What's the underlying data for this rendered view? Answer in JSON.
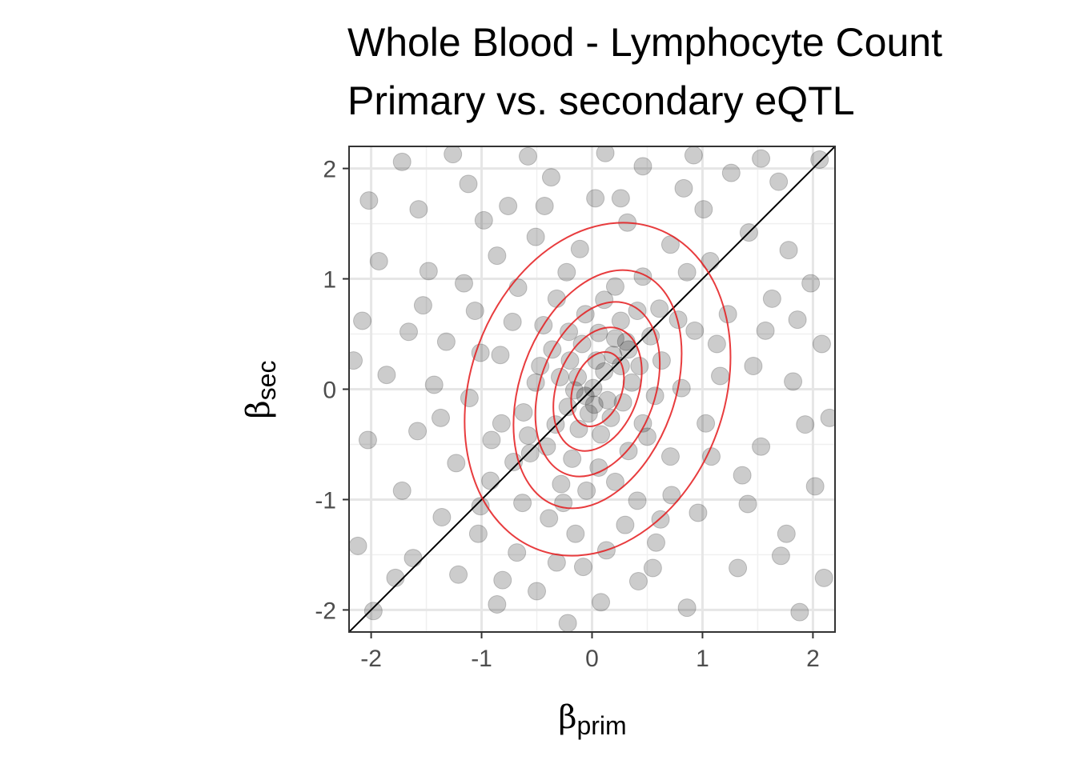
{
  "chart_data": {
    "type": "scatter",
    "title": "Whole Blood - Lymphocyte Count",
    "subtitle": "Primary vs. secondary eQTL",
    "xlabel": {
      "main": "β",
      "sub": "prim"
    },
    "ylabel": {
      "main": "β",
      "sub": "sec"
    },
    "xlim": [
      -2.2,
      2.2
    ],
    "ylim": [
      -2.2,
      2.2
    ],
    "x_ticks": [
      -2,
      -1,
      0,
      1,
      2
    ],
    "y_ticks": [
      -2,
      -1,
      0,
      1,
      2
    ],
    "x_tick_labels": [
      "-2",
      "-1",
      "0",
      "1",
      "2"
    ],
    "y_tick_labels": [
      "-2",
      "-1",
      "0",
      "1",
      "2"
    ],
    "grid": true,
    "reference_line": {
      "slope": 1,
      "intercept": 0,
      "color": "#000000"
    },
    "point_style": {
      "color": "#000000",
      "opacity": 0.2
    },
    "density_contours": {
      "color": "#e41a1c",
      "center": [
        0.05,
        0.0
      ],
      "rotation_deg": 20,
      "levels": [
        {
          "rx": 1.15,
          "ry": 1.55
        },
        {
          "rx": 0.7,
          "ry": 1.12
        },
        {
          "rx": 0.52,
          "ry": 0.82
        },
        {
          "rx": 0.37,
          "ry": 0.58
        },
        {
          "rx": 0.22,
          "ry": 0.35
        }
      ]
    },
    "points": [
      {
        "x": -1.98,
        "y": -2.01
      },
      {
        "x": -1.62,
        "y": -1.53
      },
      {
        "x": -1.21,
        "y": -1.68
      },
      {
        "x": -0.86,
        "y": -1.95
      },
      {
        "x": -0.5,
        "y": -1.83
      },
      {
        "x": -0.22,
        "y": -2.12
      },
      {
        "x": 0.08,
        "y": -1.93
      },
      {
        "x": 0.42,
        "y": -1.74
      },
      {
        "x": 0.86,
        "y": -1.98
      },
      {
        "x": 1.32,
        "y": -1.62
      },
      {
        "x": 1.88,
        "y": -2.02
      },
      {
        "x": 2.1,
        "y": -1.71
      },
      {
        "x": -2.12,
        "y": -1.42
      },
      {
        "x": -1.72,
        "y": -0.92
      },
      {
        "x": -1.36,
        "y": -1.16
      },
      {
        "x": -1.03,
        "y": -1.31
      },
      {
        "x": -0.68,
        "y": -1.48
      },
      {
        "x": -0.32,
        "y": -1.57
      },
      {
        "x": 0.13,
        "y": -1.46
      },
      {
        "x": 0.58,
        "y": -1.39
      },
      {
        "x": 0.96,
        "y": -1.12
      },
      {
        "x": 1.41,
        "y": -1.04
      },
      {
        "x": 1.76,
        "y": -1.31
      },
      {
        "x": 2.02,
        "y": -0.88
      },
      {
        "x": -2.03,
        "y": -0.46
      },
      {
        "x": -1.58,
        "y": -0.38
      },
      {
        "x": -1.23,
        "y": -0.67
      },
      {
        "x": -0.92,
        "y": -0.83
      },
      {
        "x": -0.63,
        "y": -1.03
      },
      {
        "x": -0.39,
        "y": -1.17
      },
      {
        "x": 0.3,
        "y": -1.23
      },
      {
        "x": 0.72,
        "y": -0.96
      },
      {
        "x": 1.08,
        "y": -0.61
      },
      {
        "x": 1.53,
        "y": -0.52
      },
      {
        "x": 1.93,
        "y": -0.32
      },
      {
        "x": -1.86,
        "y": 0.13
      },
      {
        "x": -1.43,
        "y": 0.04
      },
      {
        "x": -1.11,
        "y": -0.08
      },
      {
        "x": -0.82,
        "y": -0.31
      },
      {
        "x": -0.56,
        "y": -0.58
      },
      {
        "x": -0.47,
        "y": 0.21
      },
      {
        "x": 0.5,
        "y": -0.43
      },
      {
        "x": 0.81,
        "y": 0.01
      },
      {
        "x": 1.16,
        "y": 0.12
      },
      {
        "x": 1.46,
        "y": 0.21
      },
      {
        "x": 1.82,
        "y": 0.07
      },
      {
        "x": 2.08,
        "y": 0.41
      },
      {
        "x": -2.08,
        "y": 0.62
      },
      {
        "x": -1.66,
        "y": 0.52
      },
      {
        "x": -1.32,
        "y": 0.43
      },
      {
        "x": -1.01,
        "y": 0.33
      },
      {
        "x": -0.72,
        "y": 0.61
      },
      {
        "x": -0.32,
        "y": 0.82
      },
      {
        "x": 0.21,
        "y": 0.93
      },
      {
        "x": 0.61,
        "y": 0.73
      },
      {
        "x": 0.93,
        "y": 0.53
      },
      {
        "x": 1.23,
        "y": 0.68
      },
      {
        "x": 1.63,
        "y": 0.82
      },
      {
        "x": 1.98,
        "y": 0.96
      },
      {
        "x": -1.93,
        "y": 1.16
      },
      {
        "x": -1.48,
        "y": 1.07
      },
      {
        "x": -1.16,
        "y": 0.96
      },
      {
        "x": -0.86,
        "y": 1.21
      },
      {
        "x": -0.51,
        "y": 1.38
      },
      {
        "x": -0.11,
        "y": 1.27
      },
      {
        "x": 0.32,
        "y": 1.51
      },
      {
        "x": 0.71,
        "y": 1.31
      },
      {
        "x": 1.07,
        "y": 1.16
      },
      {
        "x": 1.42,
        "y": 1.42
      },
      {
        "x": 1.78,
        "y": 1.26
      },
      {
        "x": -2.02,
        "y": 1.71
      },
      {
        "x": -1.57,
        "y": 1.63
      },
      {
        "x": -1.12,
        "y": 1.86
      },
      {
        "x": -0.76,
        "y": 1.66
      },
      {
        "x": -0.37,
        "y": 1.92
      },
      {
        "x": 0.03,
        "y": 1.73
      },
      {
        "x": 0.46,
        "y": 2.02
      },
      {
        "x": 0.83,
        "y": 1.82
      },
      {
        "x": 1.26,
        "y": 1.96
      },
      {
        "x": 1.69,
        "y": 1.88
      },
      {
        "x": 2.06,
        "y": 2.08
      },
      {
        "x": -1.72,
        "y": 2.06
      },
      {
        "x": -1.26,
        "y": 2.13
      },
      {
        "x": -0.58,
        "y": 2.11
      },
      {
        "x": 0.12,
        "y": 2.14
      },
      {
        "x": 0.92,
        "y": 2.12
      },
      {
        "x": 1.53,
        "y": 2.09
      },
      {
        "x": -0.62,
        "y": -0.21
      },
      {
        "x": -0.41,
        "y": -0.52
      },
      {
        "x": -0.28,
        "y": -0.86
      },
      {
        "x": -0.18,
        "y": -0.63
      },
      {
        "x": -0.05,
        "y": -0.92
      },
      {
        "x": 0.06,
        "y": -0.71
      },
      {
        "x": 0.21,
        "y": -0.84
      },
      {
        "x": 0.33,
        "y": -0.56
      },
      {
        "x": 0.46,
        "y": -0.31
      },
      {
        "x": 0.57,
        "y": -0.06
      },
      {
        "x": 0.63,
        "y": 0.26
      },
      {
        "x": 0.53,
        "y": 0.48
      },
      {
        "x": 0.41,
        "y": 0.71
      },
      {
        "x": 0.26,
        "y": 0.62
      },
      {
        "x": 0.11,
        "y": 0.81
      },
      {
        "x": -0.06,
        "y": 0.68
      },
      {
        "x": -0.21,
        "y": 0.52
      },
      {
        "x": -0.36,
        "y": 0.36
      },
      {
        "x": -0.51,
        "y": 0.06
      },
      {
        "x": -0.58,
        "y": -0.42
      },
      {
        "x": -0.33,
        "y": -0.32
      },
      {
        "x": -0.22,
        "y": -0.16
      },
      {
        "x": -0.12,
        "y": -0.36
      },
      {
        "x": -0.03,
        "y": -0.22
      },
      {
        "x": 0.08,
        "y": -0.41
      },
      {
        "x": 0.17,
        "y": -0.26
      },
      {
        "x": 0.28,
        "y": -0.12
      },
      {
        "x": 0.36,
        "y": 0.06
      },
      {
        "x": 0.43,
        "y": 0.21
      },
      {
        "x": 0.33,
        "y": 0.36
      },
      {
        "x": 0.21,
        "y": 0.46
      },
      {
        "x": 0.06,
        "y": 0.51
      },
      {
        "x": -0.09,
        "y": 0.41
      },
      {
        "x": -0.2,
        "y": 0.26
      },
      {
        "x": -0.29,
        "y": 0.11
      },
      {
        "x": -0.13,
        "y": 0.11
      },
      {
        "x": 0.01,
        "y": 0.01
      },
      {
        "x": 0.11,
        "y": 0.16
      },
      {
        "x": 0.19,
        "y": 0.31
      },
      {
        "x": 0.04,
        "y": 0.26
      },
      {
        "x": -0.06,
        "y": -0.06
      },
      {
        "x": 0.14,
        "y": -0.1
      },
      {
        "x": 0.26,
        "y": 0.21
      },
      {
        "x": -0.16,
        "y": -0.01
      },
      {
        "x": 0.02,
        "y": -0.14
      },
      {
        "x": 0.31,
        "y": 0.43
      },
      {
        "x": -0.44,
        "y": 0.58
      },
      {
        "x": -0.71,
        "y": -0.66
      },
      {
        "x": -0.26,
        "y": -1.03
      },
      {
        "x": 0.41,
        "y": -1.01
      },
      {
        "x": 0.71,
        "y": -0.61
      },
      {
        "x": 0.78,
        "y": 0.63
      },
      {
        "x": 0.46,
        "y": 1.02
      },
      {
        "x": -0.23,
        "y": 1.06
      },
      {
        "x": -0.67,
        "y": 0.92
      },
      {
        "x": -0.83,
        "y": 0.31
      },
      {
        "x": -0.91,
        "y": -0.46
      },
      {
        "x": 1.03,
        "y": -0.31
      },
      {
        "x": 1.13,
        "y": 0.41
      },
      {
        "x": -1.06,
        "y": 0.71
      },
      {
        "x": -1.01,
        "y": -1.06
      },
      {
        "x": 0.86,
        "y": 1.06
      },
      {
        "x": -0.15,
        "y": -1.31
      },
      {
        "x": 0.62,
        "y": -1.18
      },
      {
        "x": -0.98,
        "y": 1.53
      },
      {
        "x": 1.36,
        "y": -0.78
      },
      {
        "x": -1.37,
        "y": -0.26
      },
      {
        "x": 1.57,
        "y": 0.53
      },
      {
        "x": -0.43,
        "y": 1.66
      },
      {
        "x": 0.26,
        "y": 1.73
      },
      {
        "x": -1.78,
        "y": -1.71
      },
      {
        "x": 1.71,
        "y": -1.51
      },
      {
        "x": -0.08,
        "y": -1.61
      },
      {
        "x": 0.55,
        "y": -1.62
      },
      {
        "x": -1.53,
        "y": 0.76
      },
      {
        "x": 1.86,
        "y": 0.63
      },
      {
        "x": -2.16,
        "y": 0.26
      },
      {
        "x": 2.15,
        "y": -0.26
      },
      {
        "x": -0.81,
        "y": -1.73
      },
      {
        "x": 1.01,
        "y": 1.63
      }
    ]
  }
}
